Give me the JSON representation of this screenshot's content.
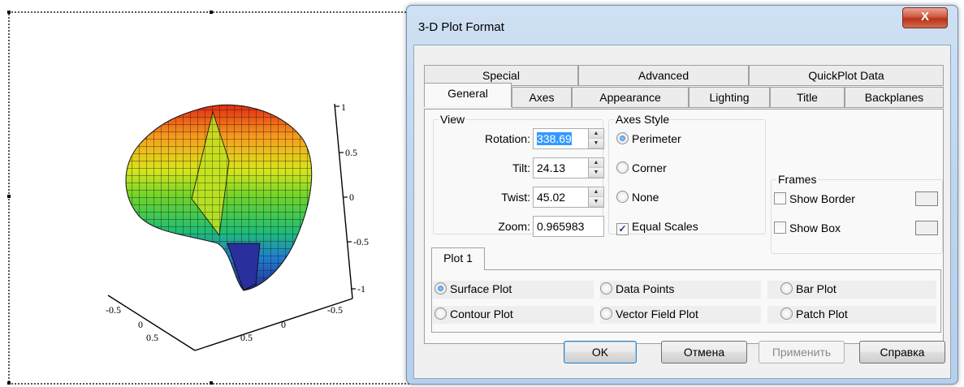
{
  "plot": {
    "z_ticks": [
      "1",
      "0.5",
      "0",
      "-0.5",
      "-1"
    ],
    "x_ticks": [
      "-0.5",
      "0",
      "0.5"
    ],
    "y_ticks": [
      "-0.5",
      "0",
      "0.5"
    ]
  },
  "dialog": {
    "title": "3-D Plot Format",
    "close_label": "X",
    "tabs_row1": [
      "Special",
      "Advanced",
      "QuickPlot Data"
    ],
    "tabs_row2": [
      "General",
      "Axes",
      "Appearance",
      "Lighting",
      "Title",
      "Backplanes"
    ],
    "active_tab": "General",
    "view": {
      "legend": "View",
      "rotation_label": "Rotation:",
      "rotation_value": "338.69",
      "tilt_label": "Tilt:",
      "tilt_value": "24.13",
      "twist_label": "Twist:",
      "twist_value": "45.02",
      "zoom_label": "Zoom:",
      "zoom_value": "0.965983"
    },
    "axes_style": {
      "legend": "Axes Style",
      "options": [
        "Perimeter",
        "Corner",
        "None"
      ],
      "selected": "Perimeter",
      "equal_scales_label": "Equal Scales",
      "equal_scales_checked": true
    },
    "frames": {
      "legend": "Frames",
      "show_border_label": "Show Border",
      "show_border_checked": false,
      "show_box_label": "Show Box",
      "show_box_checked": false
    },
    "plot_tab": "Plot 1",
    "plot_types": [
      "Surface Plot",
      "Data Points",
      "Bar Plot",
      "Contour Plot",
      "Vector Field Plot",
      "Patch Plot"
    ],
    "plot_type_selected": "Surface Plot",
    "buttons": {
      "ok": "OK",
      "cancel": "Отмена",
      "apply": "Применить",
      "help": "Справка"
    }
  }
}
